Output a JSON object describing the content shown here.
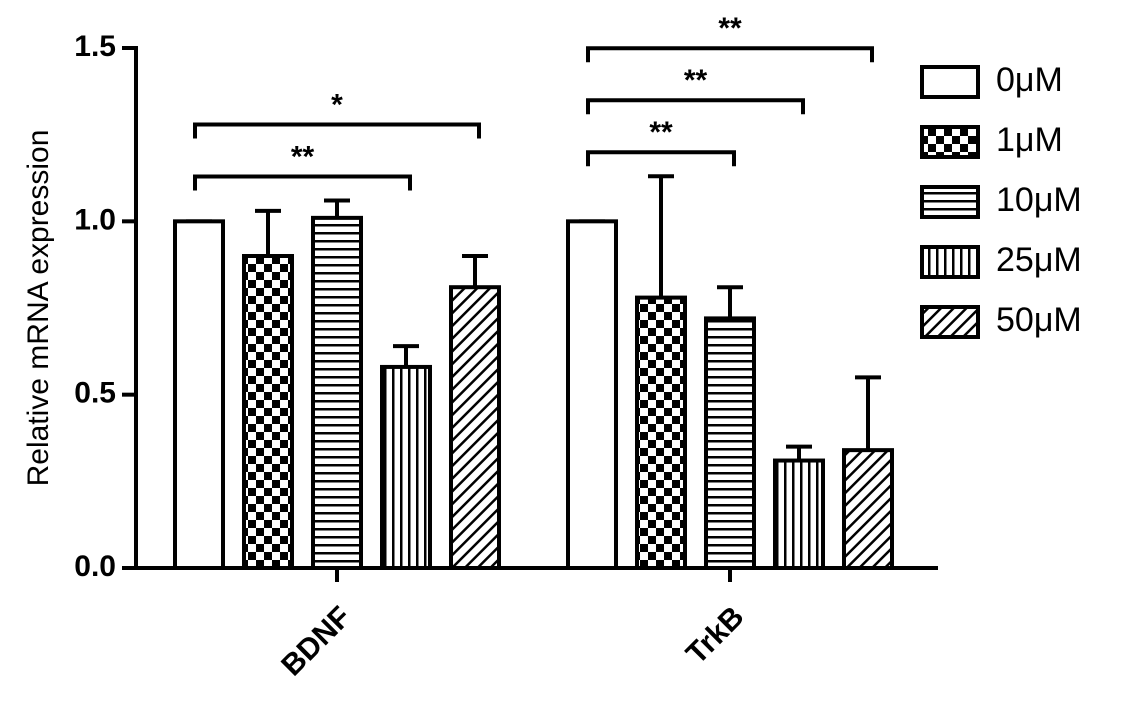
{
  "chart_data": {
    "type": "bar",
    "y_label": "Relative mRNA expression",
    "categories": [
      "BDNF",
      "TrkB"
    ],
    "series": [
      {
        "name": "0μM",
        "color": "#000000",
        "pattern": "none",
        "values": [
          1.0,
          1.0
        ],
        "errors": [
          0,
          0
        ]
      },
      {
        "name": "1μM",
        "color": "#000000",
        "pattern": "checker",
        "values": [
          0.9,
          0.78
        ],
        "errors": [
          0.13,
          0.35
        ]
      },
      {
        "name": "10μM",
        "color": "#000000",
        "pattern": "horizontal",
        "values": [
          1.01,
          0.72
        ],
        "errors": [
          0.05,
          0.09
        ]
      },
      {
        "name": "25μM",
        "color": "#000000",
        "pattern": "vertical",
        "values": [
          0.58,
          0.31
        ],
        "errors": [
          0.06,
          0.04
        ]
      },
      {
        "name": "50μM",
        "color": "#000000",
        "pattern": "diagonal",
        "values": [
          0.81,
          0.34
        ],
        "errors": [
          0.09,
          0.21
        ]
      }
    ],
    "ylim": [
      0,
      1.5
    ],
    "yticks": [
      {
        "value": 0,
        "label": "0.0"
      },
      {
        "value": 0.5,
        "label": "0.5"
      },
      {
        "value": 1,
        "label": "1.0"
      },
      {
        "value": 1.5,
        "label": "1.5"
      }
    ],
    "annotations": [
      {
        "text": "**",
        "category": "BDNF",
        "from": "0μM",
        "to": "25μM"
      },
      {
        "text": "*",
        "category": "BDNF",
        "from": "0μM",
        "to": "50μM"
      },
      {
        "text": "**",
        "category": "TrkB",
        "from": "0μM",
        "to": "10μM"
      },
      {
        "text": "**",
        "category": "TrkB",
        "from": "0μM",
        "to": "25μM"
      },
      {
        "text": "**",
        "category": "TrkB",
        "from": "0μM",
        "to": "50μM"
      }
    ]
  }
}
